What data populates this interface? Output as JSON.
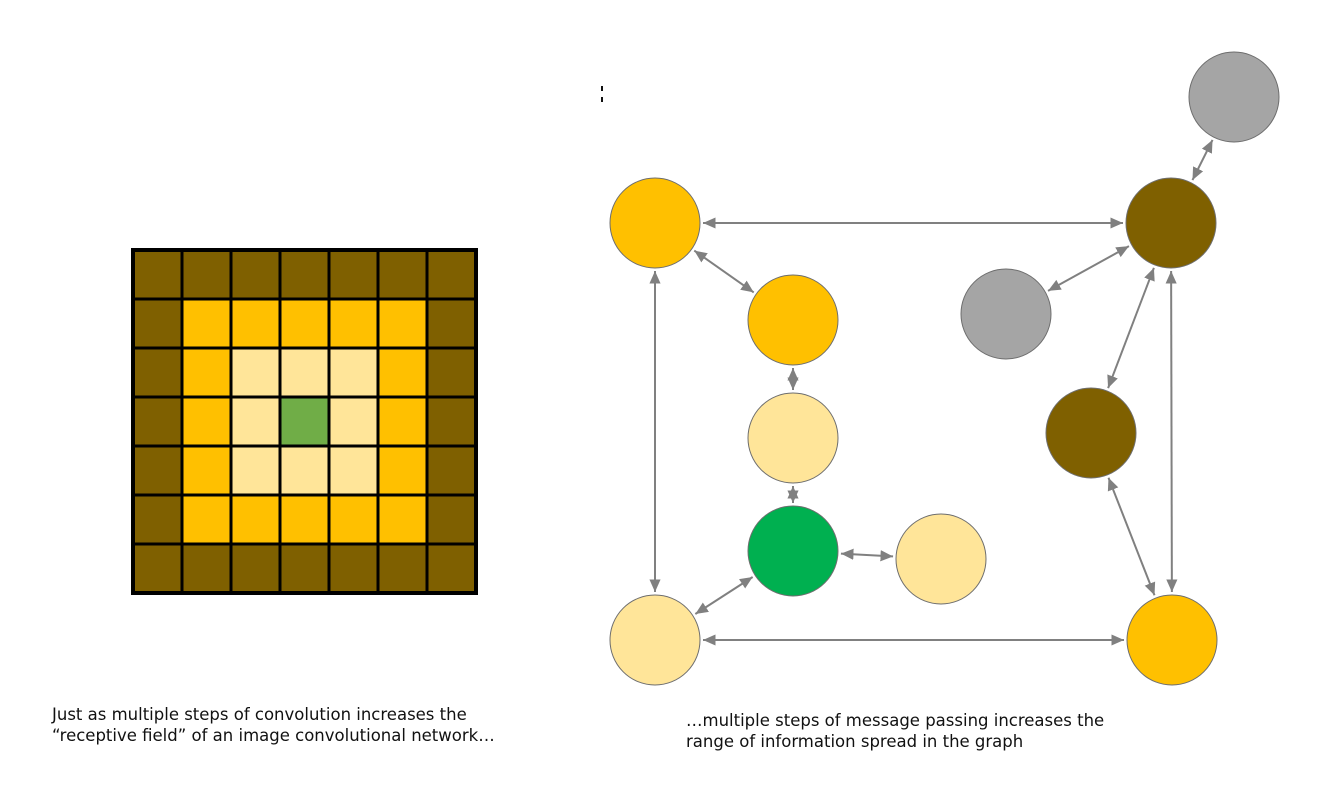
{
  "colors": {
    "dark": "#7f6000",
    "mid": "#ffc000",
    "light": "#ffe599",
    "center_cell": "#70ad47",
    "center_node": "#00b050",
    "unreached": "#a5a5a5",
    "grid_line": "#000000",
    "edge": "#808080"
  },
  "grid": {
    "size": 7,
    "levels": [
      [
        "dark",
        "dark",
        "dark",
        "dark",
        "dark",
        "dark",
        "dark"
      ],
      [
        "dark",
        "mid",
        "mid",
        "mid",
        "mid",
        "mid",
        "dark"
      ],
      [
        "dark",
        "mid",
        "light",
        "light",
        "light",
        "mid",
        "dark"
      ],
      [
        "dark",
        "mid",
        "light",
        "center_cell",
        "light",
        "mid",
        "dark"
      ],
      [
        "dark",
        "mid",
        "light",
        "light",
        "light",
        "mid",
        "dark"
      ],
      [
        "dark",
        "mid",
        "mid",
        "mid",
        "mid",
        "mid",
        "dark"
      ],
      [
        "dark",
        "dark",
        "dark",
        "dark",
        "dark",
        "dark",
        "dark"
      ]
    ]
  },
  "graph": {
    "nodes": [
      {
        "id": "top-left",
        "level": "mid"
      },
      {
        "id": "upper-middle",
        "level": "mid"
      },
      {
        "id": "middle",
        "level": "light"
      },
      {
        "id": "center",
        "level": "center_node"
      },
      {
        "id": "center-right",
        "level": "light"
      },
      {
        "id": "bottom-left",
        "level": "light"
      },
      {
        "id": "bottom-right",
        "level": "mid"
      },
      {
        "id": "right-middle",
        "level": "dark"
      },
      {
        "id": "top-right",
        "level": "dark"
      },
      {
        "id": "gray-left",
        "level": "unreached"
      },
      {
        "id": "gray-top",
        "level": "unreached"
      }
    ],
    "edges": [
      [
        "top-left",
        "top-right"
      ],
      [
        "top-left",
        "upper-middle"
      ],
      [
        "top-left",
        "bottom-left"
      ],
      [
        "upper-middle",
        "middle"
      ],
      [
        "middle",
        "center"
      ],
      [
        "center",
        "center-right"
      ],
      [
        "center",
        "bottom-left"
      ],
      [
        "bottom-left",
        "bottom-right"
      ],
      [
        "bottom-right",
        "right-middle"
      ],
      [
        "bottom-right",
        "top-right"
      ],
      [
        "right-middle",
        "top-right"
      ],
      [
        "gray-left",
        "top-right"
      ],
      [
        "gray-top",
        "top-right"
      ]
    ]
  },
  "captions": {
    "left_line1": "Just as multiple steps of convolution increases the",
    "left_line2": "“receptive field” of an image convolutional network…",
    "right_line1": "…multiple steps of message passing increases the",
    "right_line2": "range of information spread in the graph"
  }
}
